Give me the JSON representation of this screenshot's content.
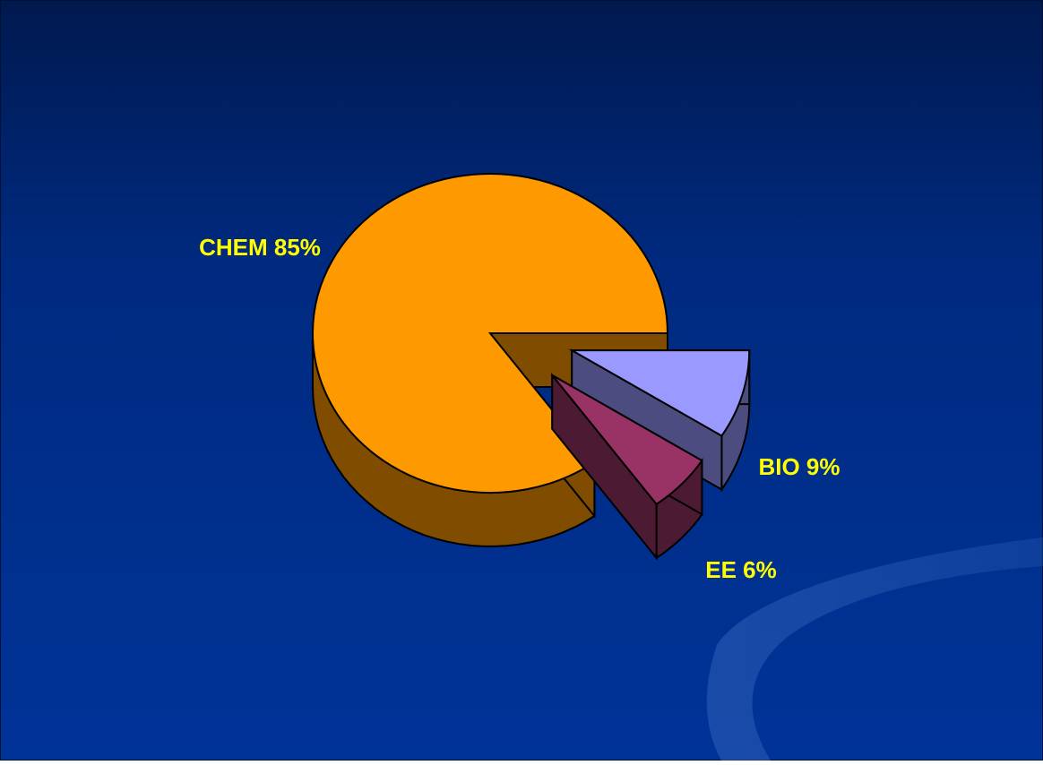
{
  "chart_data": {
    "type": "pie",
    "style": "3d-exploded",
    "title": "",
    "slices": [
      {
        "label": "CHEM",
        "value": 85,
        "display": "CHEM 85%",
        "color": "#FF9900",
        "side_color": "#7F4C00",
        "exploded": false
      },
      {
        "label": "BIO",
        "value": 9,
        "display": "BIO 9%",
        "color": "#9999FF",
        "side_color": "#4C4C80",
        "exploded": true
      },
      {
        "label": "EE",
        "value": 6,
        "display": "EE 6%",
        "color": "#993366",
        "side_color": "#4C1A33",
        "exploded": true
      }
    ],
    "label_color": "#FFFF00",
    "background_color": "#003399"
  }
}
